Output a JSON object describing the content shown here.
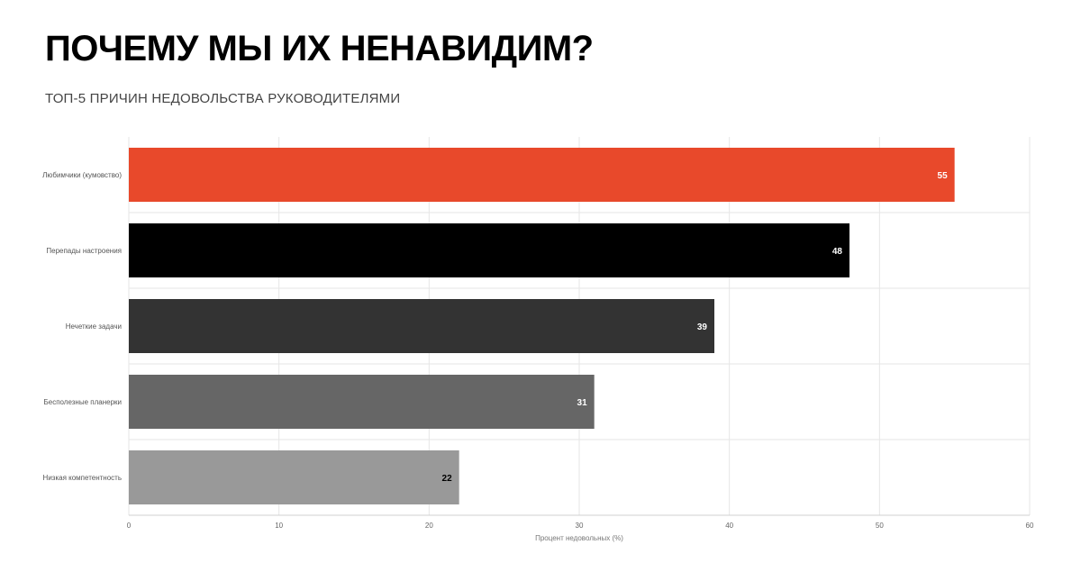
{
  "header": {
    "title": "ПОЧЕМУ МЫ ИХ НЕНАВИДИМ?",
    "subtitle": "ТОП-5 ПРИЧИН НЕДОВОЛЬСТВА РУКОВОДИТЕЛЯМИ"
  },
  "chart_data": {
    "type": "bar",
    "orientation": "horizontal",
    "title": "ПОЧЕМУ МЫ ИХ НЕНАВИДИМ?",
    "subtitle": "ТОП-5 ПРИЧИН НЕДОВОЛЬСТВА РУКОВОДИТЕЛЯМИ",
    "categories": [
      "Любимчики (кумовство)",
      "Перепады настроения",
      "Нечеткие задачи",
      "Бесполезные планерки",
      "Низкая компетентность"
    ],
    "values": [
      55,
      48,
      39,
      31,
      22
    ],
    "bar_colors": [
      "#e8492b",
      "#000000",
      "#333333",
      "#666666",
      "#999999"
    ],
    "value_label_colors": [
      "#ffffff",
      "#ffffff",
      "#ffffff",
      "#ffffff",
      "#000000"
    ],
    "xlabel": "Процент недовольных (%)",
    "ylabel": "",
    "xlim": [
      0,
      60
    ],
    "xticks": [
      0,
      10,
      20,
      30,
      40,
      50,
      60
    ],
    "grid": true,
    "data_labels": true,
    "legend": "none"
  }
}
